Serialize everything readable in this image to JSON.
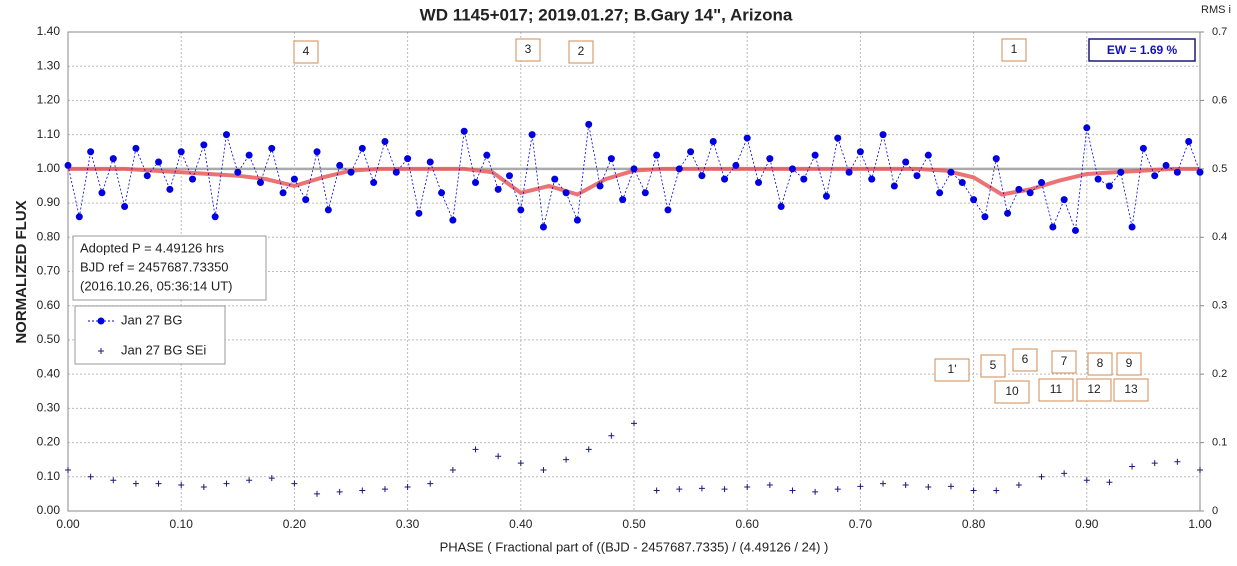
{
  "chart_data": {
    "type": "scatter",
    "title": "WD 1145+017; 2019.01.27; B.Gary 14\", Arizona",
    "y_label": "NORMALIZED FLUX",
    "y2_label": "RMS i",
    "x_label": "PHASE ( Fractional part of ((BJD - 2457687.7335) / (4.49126 / 24) )",
    "xlim": [
      0,
      1
    ],
    "ylim": [
      0,
      1.4
    ],
    "y2lim": [
      0,
      0.7
    ],
    "grid": true,
    "xticks": [
      {
        "value": 0,
        "label": "0.00"
      },
      {
        "value": 0.1,
        "label": "0.10"
      },
      {
        "value": 0.2,
        "label": "0.20"
      },
      {
        "value": 0.3,
        "label": "0.30"
      },
      {
        "value": 0.4,
        "label": "0.40"
      },
      {
        "value": 0.5,
        "label": "0.50"
      },
      {
        "value": 0.6,
        "label": "0.60"
      },
      {
        "value": 0.7,
        "label": "0.70"
      },
      {
        "value": 0.8,
        "label": "0.80"
      },
      {
        "value": 0.9,
        "label": "0.90"
      },
      {
        "value": 1,
        "label": "1.00"
      }
    ],
    "yticks": [
      {
        "value": 0,
        "label": "0.00"
      },
      {
        "value": 0.1,
        "label": "0.10"
      },
      {
        "value": 0.2,
        "label": "0.20"
      },
      {
        "value": 0.3,
        "label": "0.30"
      },
      {
        "value": 0.4,
        "label": "0.40"
      },
      {
        "value": 0.5,
        "label": "0.50"
      },
      {
        "value": 0.6,
        "label": "0.60"
      },
      {
        "value": 0.7,
        "label": "0.70"
      },
      {
        "value": 0.8,
        "label": "0.80"
      },
      {
        "value": 0.9,
        "label": "0.90"
      },
      {
        "value": 1,
        "label": "1.00"
      },
      {
        "value": 1.1,
        "label": "1.10"
      },
      {
        "value": 1.2,
        "label": "1.20"
      },
      {
        "value": 1.3,
        "label": "1.30"
      },
      {
        "value": 1.4,
        "label": "1.40"
      }
    ],
    "y2ticks": [
      0,
      0.1,
      0.2,
      0.3,
      0.4,
      0.5,
      0.6,
      0.7
    ],
    "reference_line": 1,
    "series": [
      {
        "name": "Jan 27 BG",
        "color": "#0000e0",
        "x": [
          0,
          0.01,
          0.02,
          0.03,
          0.04,
          0.05,
          0.06,
          0.07,
          0.08,
          0.09,
          0.1,
          0.11,
          0.12,
          0.13,
          0.14,
          0.15,
          0.16,
          0.17,
          0.18,
          0.19,
          0.2,
          0.21,
          0.22,
          0.23,
          0.24,
          0.25,
          0.26,
          0.27,
          0.28,
          0.29,
          0.3,
          0.31,
          0.32,
          0.33,
          0.34,
          0.35,
          0.36,
          0.37,
          0.38,
          0.39,
          0.4,
          0.41,
          0.42,
          0.43,
          0.44,
          0.45,
          0.46,
          0.47,
          0.48,
          0.49,
          0.5,
          0.51,
          0.52,
          0.53,
          0.54,
          0.55,
          0.56,
          0.57,
          0.58,
          0.59,
          0.6,
          0.61,
          0.62,
          0.63,
          0.64,
          0.65,
          0.66,
          0.67,
          0.68,
          0.69,
          0.7,
          0.71,
          0.72,
          0.73,
          0.74,
          0.75,
          0.76,
          0.77,
          0.78,
          0.79,
          0.8,
          0.81,
          0.82,
          0.83,
          0.84,
          0.85,
          0.86,
          0.87,
          0.88,
          0.89,
          0.9,
          0.91,
          0.92,
          0.93,
          0.94,
          0.95,
          0.96,
          0.97,
          0.98,
          0.99,
          1
        ],
        "values": [
          1.01,
          0.86,
          1.05,
          0.93,
          1.03,
          0.89,
          1.06,
          0.98,
          1.02,
          0.94,
          1.05,
          0.97,
          1.07,
          0.86,
          1.1,
          0.99,
          1.04,
          0.96,
          1.06,
          0.93,
          0.97,
          0.91,
          1.05,
          0.88,
          1.01,
          0.99,
          1.06,
          0.96,
          1.08,
          0.99,
          1.03,
          0.87,
          1.02,
          0.93,
          0.85,
          1.11,
          0.96,
          1.04,
          0.94,
          0.98,
          0.88,
          1.1,
          0.83,
          0.97,
          0.93,
          0.85,
          1.13,
          0.95,
          1.03,
          0.91,
          1,
          0.93,
          1.04,
          0.88,
          1,
          1.05,
          0.98,
          1.08,
          0.97,
          1.01,
          1.09,
          0.96,
          1.03,
          0.89,
          1,
          0.97,
          1.04,
          0.92,
          1.09,
          0.99,
          1.05,
          0.97,
          1.1,
          0.95,
          1.02,
          0.98,
          1.04,
          0.93,
          0.99,
          0.96,
          0.91,
          0.86,
          1.03,
          0.87,
          0.94,
          0.93,
          0.96,
          0.83,
          0.91,
          0.82,
          1.12,
          0.97,
          0.95,
          0.99,
          0.83,
          1.06,
          0.98,
          1.01,
          0.99,
          1.08,
          0.99
        ]
      },
      {
        "name": "Jan 27 BG SEi",
        "color": "#1a1a7a",
        "axis": "y2",
        "x": [
          0,
          0.02,
          0.04,
          0.06,
          0.08,
          0.1,
          0.12,
          0.14,
          0.16,
          0.18,
          0.2,
          0.22,
          0.24,
          0.26,
          0.28,
          0.3,
          0.32,
          0.34,
          0.36,
          0.38,
          0.4,
          0.42,
          0.44,
          0.46,
          0.48,
          0.5,
          0.52,
          0.54,
          0.56,
          0.58,
          0.6,
          0.62,
          0.64,
          0.66,
          0.68,
          0.7,
          0.72,
          0.74,
          0.76,
          0.78,
          0.8,
          0.82,
          0.84,
          0.86,
          0.88,
          0.9,
          0.92,
          0.94,
          0.96,
          0.98,
          1
        ],
        "values": [
          0.06,
          0.05,
          0.045,
          0.04,
          0.04,
          0.038,
          0.035,
          0.04,
          0.045,
          0.048,
          0.04,
          0.025,
          0.028,
          0.03,
          0.032,
          0.035,
          0.04,
          0.06,
          0.09,
          0.08,
          0.07,
          0.06,
          0.075,
          0.09,
          0.11,
          0.128,
          0.03,
          0.032,
          0.033,
          0.032,
          0.035,
          0.038,
          0.03,
          0.028,
          0.032,
          0.036,
          0.04,
          0.038,
          0.035,
          0.036,
          0.03,
          0.03,
          0.038,
          0.05,
          0.055,
          0.045,
          0.042,
          0.065,
          0.07,
          0.072,
          0.06
        ]
      }
    ],
    "model_curve": {
      "color": "#e85a5a",
      "x": [
        0,
        0.025,
        0.05,
        0.075,
        0.1,
        0.125,
        0.15,
        0.175,
        0.2,
        0.225,
        0.25,
        0.275,
        0.3,
        0.325,
        0.35,
        0.375,
        0.4,
        0.425,
        0.45,
        0.475,
        0.5,
        0.525,
        0.55,
        0.575,
        0.6,
        0.625,
        0.65,
        0.675,
        0.7,
        0.725,
        0.75,
        0.775,
        0.8,
        0.825,
        0.85,
        0.875,
        0.9,
        0.925,
        0.95,
        0.975,
        1
      ],
      "values": [
        1,
        1,
        1,
        0.995,
        0.99,
        0.985,
        0.98,
        0.97,
        0.95,
        0.975,
        0.995,
        1,
        1,
        1,
        1,
        0.99,
        0.93,
        0.95,
        0.925,
        0.97,
        0.995,
        1,
        1,
        1,
        1,
        1,
        1,
        1,
        1,
        1,
        1,
        0.995,
        0.975,
        0.925,
        0.94,
        0.965,
        0.985,
        0.99,
        0.995,
        1,
        1
      ]
    },
    "annotations": [
      "4",
      "3",
      "2",
      "1",
      "1'",
      "5",
      "6",
      "7",
      "8",
      "9",
      "10",
      "11",
      "12",
      "13"
    ],
    "ew_label": "EW =  1.69 %",
    "info_lines": [
      "Adopted P = 4.49126 hrs",
      "BJD ref = 2457687.73350",
      "(2016.10.26, 05:36:14 UT)"
    ]
  }
}
